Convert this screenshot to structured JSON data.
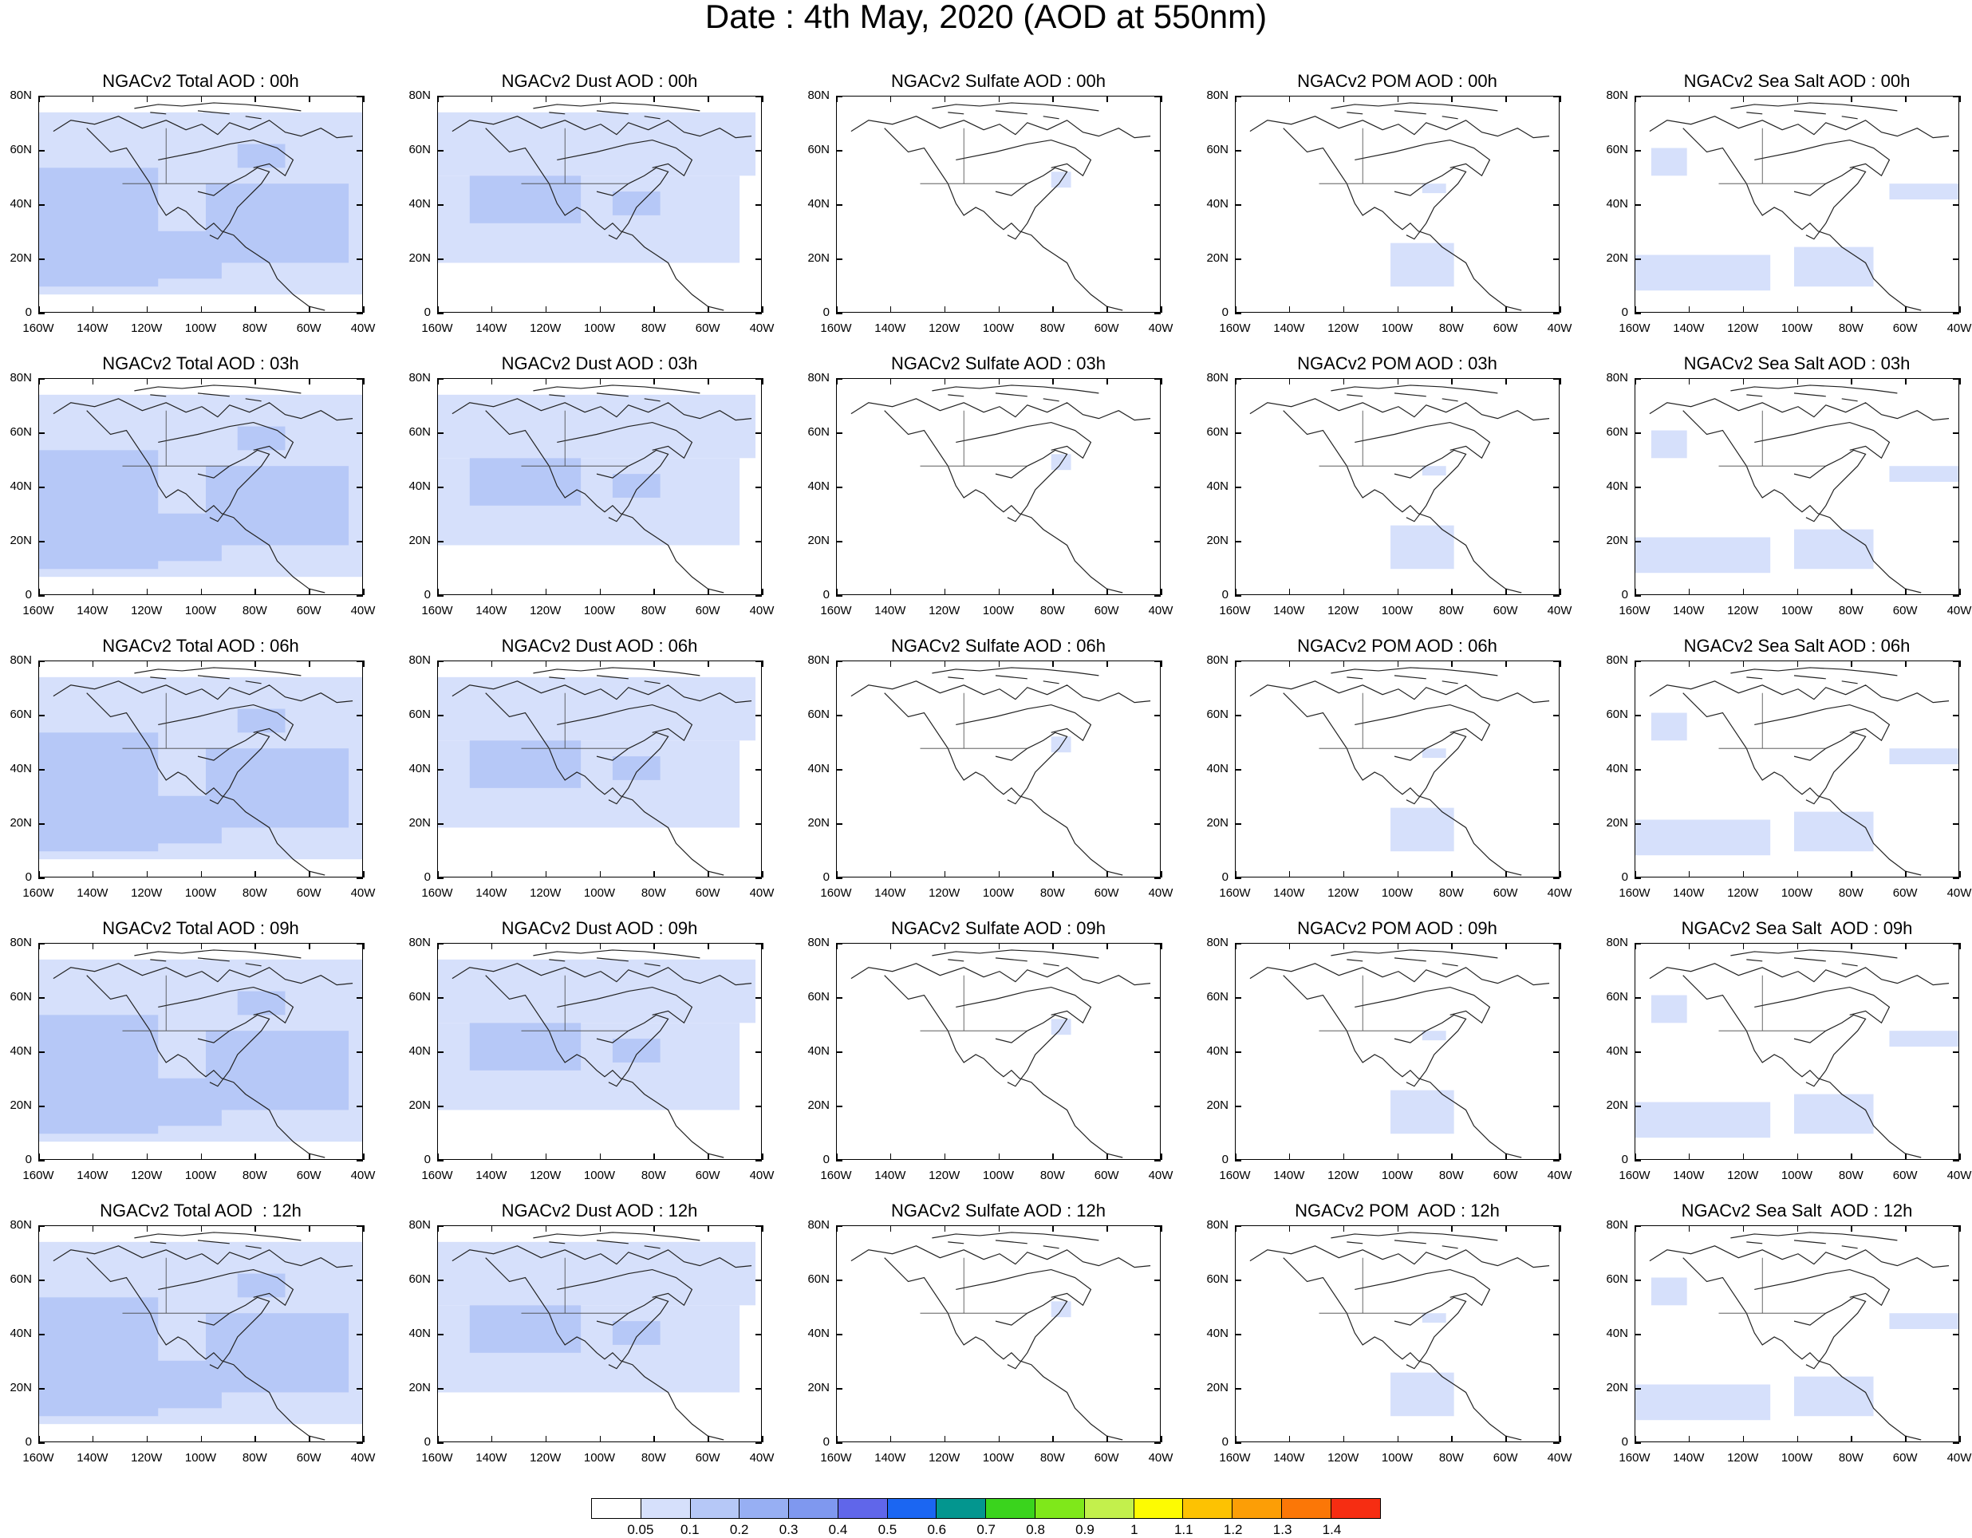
{
  "title": "Date : 4th May, 2020 (AOD at 550nm)",
  "lat_ticks": [
    "80N",
    "60N",
    "40N",
    "20N",
    "0"
  ],
  "lon_ticks": [
    "160W",
    "140W",
    "120W",
    "100W",
    "80W",
    "60W",
    "40W"
  ],
  "panels": [
    [
      "NGACv2 Total AOD : 00h",
      "NGACv2 Dust AOD : 00h",
      "NGACv2 Sulfate AOD : 00h",
      "NGACv2 POM AOD : 00h",
      "NGACv2 Sea Salt AOD : 00h"
    ],
    [
      "NGACv2 Total AOD : 03h",
      "NGACv2 Dust AOD : 03h",
      "NGACv2 Sulfate AOD : 03h",
      "NGACv2 POM AOD : 03h",
      "NGACv2 Sea Salt AOD : 03h"
    ],
    [
      "NGACv2 Total AOD : 06h",
      "NGACv2 Dust AOD : 06h",
      "NGACv2 Sulfate AOD : 06h",
      "NGACv2 POM AOD : 06h",
      "NGACv2 Sea Salt AOD : 06h"
    ],
    [
      "NGACv2 Total AOD : 09h",
      "NGACv2 Dust AOD : 09h",
      "NGACv2 Sulfate AOD : 09h",
      "NGACv2 POM AOD : 09h",
      "NGACv2 Sea Salt  AOD : 09h"
    ],
    [
      "NGACv2 Total AOD  : 12h",
      "NGACv2 Dust AOD : 12h",
      "NGACv2 Sulfate AOD : 12h",
      "NGACv2 POM  AOD : 12h",
      "NGACv2 Sea Salt  AOD : 12h"
    ]
  ],
  "colorbar": {
    "colors": [
      "#ffffff",
      "#d6e0fb",
      "#b6c8f7",
      "#97aff3",
      "#7f98ef",
      "#6066ea",
      "#1b66f2",
      "#03968f",
      "#3ad41d",
      "#7fe81a",
      "#c3f04c",
      "#fdfb02",
      "#fdc202",
      "#fc9e06",
      "#fb7707",
      "#f62d12"
    ],
    "labels": [
      "0.05",
      "0.1",
      "0.2",
      "0.3",
      "0.4",
      "0.5",
      "0.6",
      "0.7",
      "0.8",
      "0.9",
      "1",
      "1.1",
      "1.2",
      "1.3",
      "1.4"
    ]
  },
  "fill_colors": {
    "light": "#d6e0fb",
    "medium": "#b6c8f7"
  }
}
